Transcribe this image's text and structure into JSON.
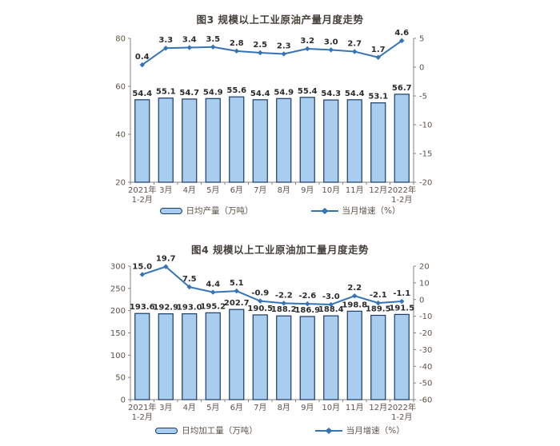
{
  "colors": {
    "bar_fill": "#A9CDEE",
    "bar_border": "#1B3A66",
    "line": "#3473B8",
    "axis": "#808080",
    "text": "#5d5349",
    "data_label": "#2b2b2b",
    "title": "#44403a"
  },
  "chart_data": [
    {
      "type": "bar",
      "combo": "bar+line-dual-axis",
      "title": "图3 规模以上工业原油产量月度走势",
      "categories": [
        "2021年\n1-2月",
        "3月",
        "4月",
        "5月",
        "6月",
        "7月",
        "8月",
        "9月",
        "10月",
        "11月",
        "12月",
        "2022年\n1-2月"
      ],
      "series": [
        {
          "name": "日均产量（万吨）",
          "type": "bar",
          "axis": "left",
          "values": [
            54.4,
            55.1,
            54.7,
            54.9,
            55.6,
            54.4,
            54.9,
            55.4,
            54.3,
            54.4,
            53.1,
            56.7
          ]
        },
        {
          "name": "当月增速（%）",
          "type": "line",
          "axis": "right",
          "values": [
            0.4,
            3.3,
            3.4,
            3.5,
            2.8,
            2.5,
            2.3,
            3.2,
            3.0,
            2.7,
            1.7,
            4.6
          ]
        }
      ],
      "left_axis": {
        "min": 20,
        "max": 80,
        "step": 20
      },
      "right_axis": {
        "min": -20,
        "max": 5,
        "step": 5
      },
      "grid": false,
      "legend_position": "bottom"
    },
    {
      "type": "bar",
      "combo": "bar+line-dual-axis",
      "title": "图4 规模以上工业原油加工量月度走势",
      "categories": [
        "2021年\n1-2月",
        "3月",
        "4月",
        "5月",
        "6月",
        "7月",
        "8月",
        "9月",
        "10月",
        "11月",
        "12月",
        "2022年\n1-2月"
      ],
      "series": [
        {
          "name": "日均加工量（万吨）",
          "type": "bar",
          "axis": "left",
          "values": [
            193.6,
            192.9,
            193.0,
            195.2,
            202.7,
            190.5,
            188.2,
            186.9,
            188.4,
            198.8,
            189.5,
            191.5
          ]
        },
        {
          "name": "当月增速（%）",
          "type": "line",
          "axis": "right",
          "values": [
            15.0,
            19.7,
            7.5,
            4.4,
            5.1,
            -0.9,
            -2.2,
            -2.6,
            -3.0,
            2.2,
            -2.1,
            -1.1
          ]
        }
      ],
      "left_axis": {
        "min": 0,
        "max": 300,
        "step": 50
      },
      "right_axis": {
        "min": -60,
        "max": 20,
        "step": 10
      },
      "grid": false,
      "legend_position": "bottom"
    }
  ]
}
